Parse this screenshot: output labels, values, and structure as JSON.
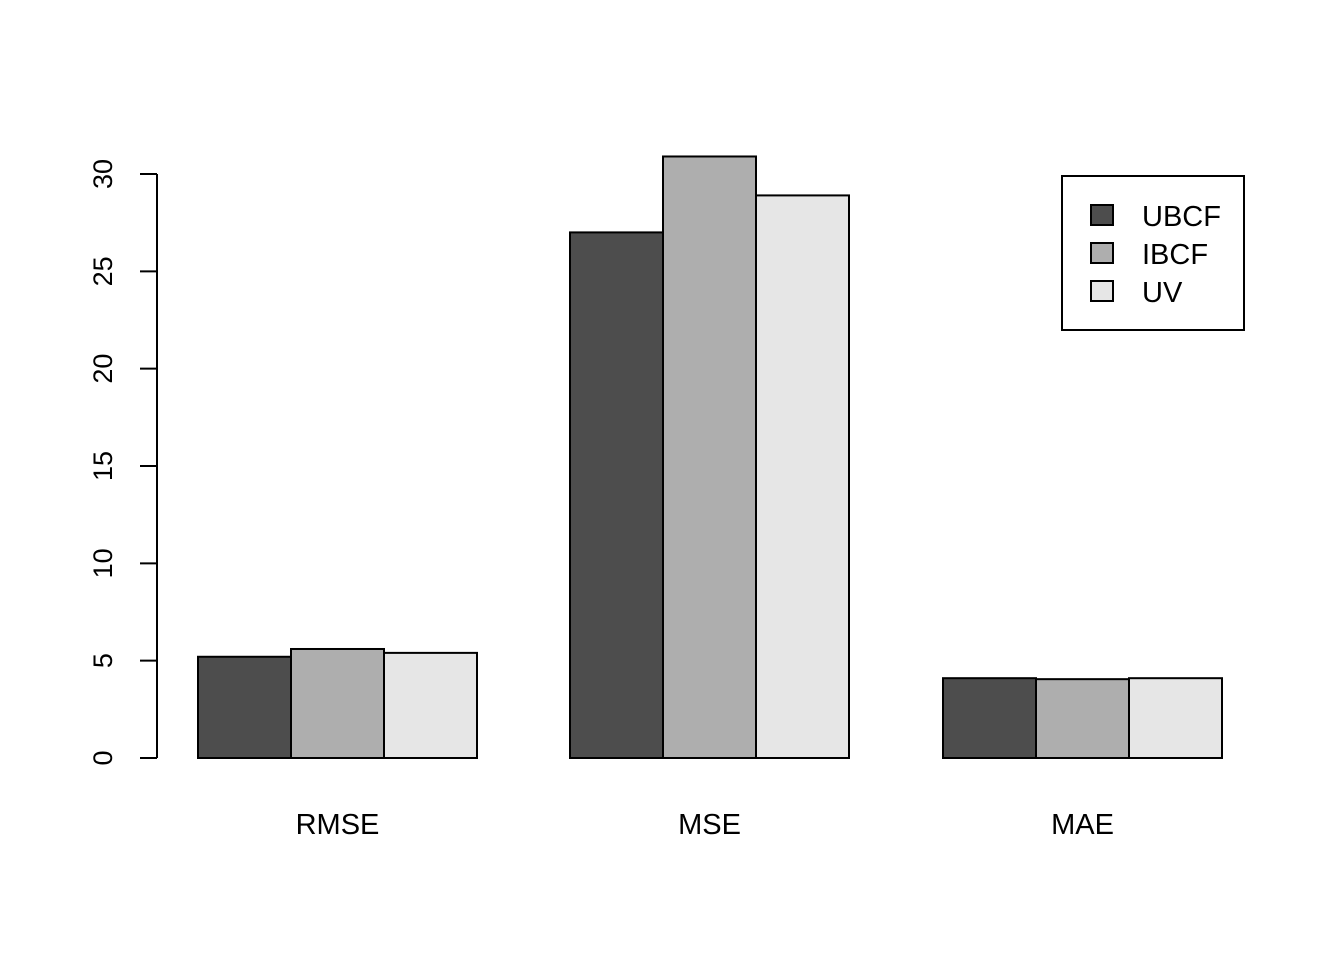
{
  "chart_data": {
    "type": "bar",
    "categories": [
      "RMSE",
      "MSE",
      "MAE"
    ],
    "series": [
      {
        "name": "UBCF",
        "color": "#4d4d4d",
        "values": [
          5.2,
          27.0,
          4.1
        ]
      },
      {
        "name": "IBCF",
        "color": "#aeaeae",
        "values": [
          5.6,
          30.9,
          4.05
        ]
      },
      {
        "name": "UV",
        "color": "#e6e6e6",
        "values": [
          5.4,
          28.9,
          4.1
        ]
      }
    ],
    "title": "",
    "xlabel": "",
    "ylabel": "",
    "ylim": [
      0,
      30
    ],
    "yticks": [
      "0",
      "5",
      "10",
      "15",
      "20",
      "25",
      "30"
    ],
    "grid": false,
    "legend_position": "top-right"
  }
}
